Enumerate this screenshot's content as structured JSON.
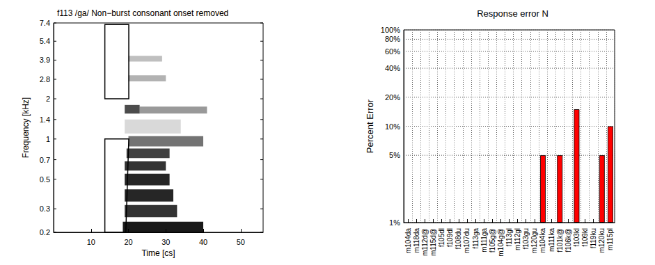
{
  "chart_data": [
    {
      "type": "spectrogram",
      "title": "f113 /ga/ Non−burst consonant onset removed",
      "xlabel": "Time [cs]",
      "ylabel": "Frequency [kHz]",
      "xlim": [
        0,
        56
      ],
      "xticks": [
        10,
        20,
        30,
        40,
        50
      ],
      "ylim": [
        0.2,
        7.4
      ],
      "yticks": [
        0.2,
        0.3,
        0.5,
        0.7,
        1,
        1.4,
        2,
        2.8,
        3.9,
        5.4,
        7.4
      ],
      "log": "y",
      "grid": false,
      "cells": [
        [
          18.5,
          40,
          0.2,
          0.24,
          0.9
        ],
        [
          19,
          33,
          0.26,
          0.32,
          0.8
        ],
        [
          19,
          32,
          0.34,
          0.42,
          0.85
        ],
        [
          19,
          31,
          0.45,
          0.55,
          0.85
        ],
        [
          19,
          30,
          0.58,
          0.68,
          0.8
        ],
        [
          19.5,
          31,
          0.72,
          0.85,
          0.75
        ],
        [
          20,
          40,
          0.88,
          1.05,
          0.55
        ],
        [
          19,
          34,
          1.1,
          1.4,
          0.15
        ],
        [
          19,
          23,
          1.55,
          1.8,
          0.7
        ],
        [
          23,
          41,
          1.55,
          1.75,
          0.4
        ],
        [
          20,
          30,
          2.7,
          3.0,
          0.3
        ],
        [
          20,
          29,
          3.8,
          4.2,
          0.25
        ]
      ],
      "boxes": [
        [
          [
            13.7,
            2
          ],
          [
            13.7,
            7.2
          ],
          [
            20.1,
            7.2
          ],
          [
            20.1,
            2
          ]
        ],
        [
          [
            13.7,
            0.2
          ],
          [
            13.7,
            1
          ],
          [
            20.1,
            1
          ],
          [
            19.3,
            0.2
          ]
        ]
      ]
    },
    {
      "type": "bar",
      "title": "Response error N",
      "ylabel": "Percent Error",
      "categories": [
        "m104da",
        "m118da",
        "m112d@",
        "m115d@",
        "f105dl",
        "f109dl",
        "f108du",
        "m107du",
        "f113ga",
        "m111ga",
        "f105g@",
        "m104g@",
        "f113gl",
        "m112gl",
        "f103gu",
        "m120gu",
        "m104ka",
        "m111ka",
        "f101k@",
        "f106k@",
        "f103kl",
        "f109kl",
        "f119ku",
        "m120ku",
        "m115pl"
      ],
      "values": [
        null,
        null,
        null,
        null,
        null,
        null,
        null,
        null,
        null,
        null,
        null,
        null,
        null,
        null,
        null,
        null,
        5,
        null,
        5,
        null,
        15,
        null,
        null,
        5,
        10
      ],
      "color": "#ff0000",
      "ylim": [
        1,
        100
      ],
      "yticks": [
        {
          "value": 1,
          "label": "1%"
        },
        {
          "value": 5,
          "label": "5%"
        },
        {
          "value": 10,
          "label": "10%"
        },
        {
          "value": 20,
          "label": "20%"
        },
        {
          "value": 40,
          "label": "40%"
        },
        {
          "value": 60,
          "label": "60%"
        },
        {
          "value": 80,
          "label": "80%"
        },
        {
          "value": 100,
          "label": "100%"
        }
      ],
      "log": "y",
      "grid": true
    }
  ]
}
